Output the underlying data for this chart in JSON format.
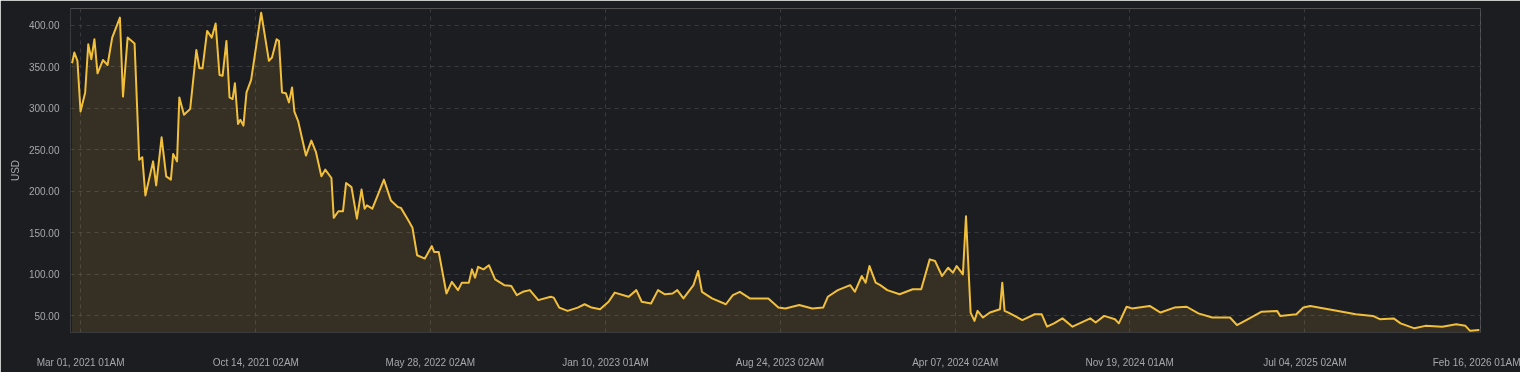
{
  "chart_data": {
    "type": "area",
    "ylabel": "USD",
    "grid": true,
    "marker": "none",
    "line_style": "solid",
    "xlim": [
      "2021-02-16",
      "2026-02-16T12:00"
    ],
    "ylim": [
      30,
      420
    ],
    "yticks": [
      {
        "value": 50,
        "label": "50.00"
      },
      {
        "value": 100,
        "label": "100.00"
      },
      {
        "value": 150,
        "label": "150.00"
      },
      {
        "value": 200,
        "label": "200.00"
      },
      {
        "value": 250,
        "label": "250.00"
      },
      {
        "value": 300,
        "label": "300.00"
      },
      {
        "value": 350,
        "label": "350.00"
      },
      {
        "value": 400,
        "label": "400.00"
      }
    ],
    "xticks": [
      {
        "value": "2021-03-01T01:00",
        "label": "Mar 01, 2021 01AM"
      },
      {
        "value": "2021-10-14T02:00",
        "label": "Oct 14, 2021 02AM"
      },
      {
        "value": "2022-05-28T02:00",
        "label": "May 28, 2022 02AM"
      },
      {
        "value": "2023-01-10T01:00",
        "label": "Jan 10, 2023 01AM"
      },
      {
        "value": "2023-08-24T02:00",
        "label": "Aug 24, 2023 02AM"
      },
      {
        "value": "2024-04-07T02:00",
        "label": "Apr 07, 2024 02AM"
      },
      {
        "value": "2024-11-19T01:00",
        "label": "Nov 19, 2024 01AM"
      },
      {
        "value": "2025-07-04T02:00",
        "label": "Jul 04, 2025 02AM"
      },
      {
        "value": "2026-02-16T01:00",
        "label": "Feb 16, 2026 01AM"
      }
    ],
    "series": [
      {
        "color": "#f2bf3c",
        "x": [
          "2021-02-18",
          "2021-02-21",
          "2021-02-25",
          "2021-03-01",
          "2021-03-07",
          "2021-03-11",
          "2021-03-15",
          "2021-03-19",
          "2021-03-23",
          "2021-03-30",
          "2021-04-05",
          "2021-04-11",
          "2021-04-21",
          "2021-04-25",
          "2021-05-01",
          "2021-05-10",
          "2021-05-16",
          "2021-05-20",
          "2021-05-24",
          "2021-06-03",
          "2021-06-07",
          "2021-06-14",
          "2021-06-20",
          "2021-06-26",
          "2021-06-29",
          "2021-07-04",
          "2021-07-07",
          "2021-07-13",
          "2021-07-21",
          "2021-07-29",
          "2021-08-02",
          "2021-08-06",
          "2021-08-12",
          "2021-08-18",
          "2021-08-23",
          "2021-08-28",
          "2021-09-01",
          "2021-09-06",
          "2021-09-10",
          "2021-09-14",
          "2021-09-17",
          "2021-09-21",
          "2021-09-24",
          "2021-09-28",
          "2021-10-02",
          "2021-10-08",
          "2021-10-21",
          "2021-10-31",
          "2021-11-04",
          "2021-11-10",
          "2021-11-13",
          "2021-11-17",
          "2021-11-22",
          "2021-11-26",
          "2021-11-30",
          "2021-12-03",
          "2021-12-08",
          "2021-12-18",
          "2021-12-25",
          "2021-12-31",
          "2022-01-07",
          "2022-01-12",
          "2022-01-20",
          "2022-01-23",
          "2022-01-29",
          "2022-02-04",
          "2022-02-08",
          "2022-02-15",
          "2022-02-22",
          "2022-02-28",
          "2022-03-04",
          "2022-03-07",
          "2022-03-14",
          "2022-03-20",
          "2022-03-29",
          "2022-04-07",
          "2022-04-16",
          "2022-04-20",
          "2022-04-29",
          "2022-05-05",
          "2022-05-11",
          "2022-05-21",
          "2022-05-30",
          "2022-06-02",
          "2022-06-08",
          "2022-06-18",
          "2022-06-25",
          "2022-07-03",
          "2022-07-08",
          "2022-07-17",
          "2022-07-21",
          "2022-07-25",
          "2022-07-29",
          "2022-08-05",
          "2022-08-12",
          "2022-08-20",
          "2022-09-01",
          "2022-09-10",
          "2022-09-17",
          "2022-09-25",
          "2022-10-04",
          "2022-10-15",
          "2022-10-31",
          "2022-11-04",
          "2022-11-11",
          "2022-11-22",
          "2022-12-05",
          "2022-12-14",
          "2022-12-23",
          "2023-01-03",
          "2023-01-14",
          "2023-01-22",
          "2023-02-09",
          "2023-02-19",
          "2023-02-26",
          "2023-03-10",
          "2023-03-19",
          "2023-03-28",
          "2023-04-07",
          "2023-04-13",
          "2023-04-21",
          "2023-05-04",
          "2023-05-10",
          "2023-05-15",
          "2023-05-28",
          "2023-06-15",
          "2023-06-24",
          "2023-07-03",
          "2023-07-16",
          "2023-08-09",
          "2023-08-22",
          "2023-08-31",
          "2023-09-18",
          "2023-10-05",
          "2023-10-19",
          "2023-10-25",
          "2023-11-07",
          "2023-11-23",
          "2023-11-29",
          "2023-12-08",
          "2023-12-13",
          "2023-12-18",
          "2023-12-26",
          "2024-01-01",
          "2024-01-10",
          "2024-01-26",
          "2024-02-12",
          "2024-02-23",
          "2024-03-05",
          "2024-03-12",
          "2024-03-21",
          "2024-03-29",
          "2024-04-04",
          "2024-04-09",
          "2024-04-17",
          "2024-04-21",
          "2024-04-27",
          "2024-05-02",
          "2024-05-06",
          "2024-05-13",
          "2024-05-22",
          "2024-06-04",
          "2024-06-07",
          "2024-06-10",
          "2024-06-15",
          "2024-07-03",
          "2024-07-19",
          "2024-07-28",
          "2024-08-04",
          "2024-08-13",
          "2024-08-24",
          "2024-09-06",
          "2024-09-29",
          "2024-10-06",
          "2024-10-17",
          "2024-10-31",
          "2024-11-05",
          "2024-11-15",
          "2024-11-22",
          "2024-12-15",
          "2024-12-29",
          "2025-01-16",
          "2025-02-01",
          "2025-02-16",
          "2025-03-06",
          "2025-03-29",
          "2025-04-07",
          "2025-04-25",
          "2025-05-09",
          "2025-05-29",
          "2025-06-02",
          "2025-06-23",
          "2025-07-02",
          "2025-07-11",
          "2025-07-29",
          "2025-08-16",
          "2025-09-08",
          "2025-09-30",
          "2025-10-09",
          "2025-10-27",
          "2025-11-05",
          "2025-11-23",
          "2025-12-07",
          "2025-12-29",
          "2026-01-16",
          "2026-01-28",
          "2026-02-03",
          "2026-02-15"
        ],
        "values": [
          354,
          367,
          357,
          296,
          319,
          377,
          359,
          383,
          342,
          358,
          352,
          385,
          409,
          314,
          385,
          378,
          238,
          241,
          195,
          236,
          207,
          265,
          218,
          214,
          245,
          236,
          313,
          292,
          299,
          370,
          348,
          348,
          393,
          385,
          402,
          340,
          339,
          381,
          313,
          311,
          330,
          281,
          286,
          279,
          319,
          334,
          415,
          357,
          361,
          383,
          381,
          319,
          318,
          307,
          325,
          296,
          284,
          243,
          261,
          247,
          218,
          226,
          216,
          168,
          176,
          176,
          210,
          205,
          167,
          202,
          179,
          183,
          179,
          193,
          214,
          189,
          181,
          180,
          166,
          156,
          123,
          119,
          134,
          127,
          127,
          77,
          91,
          81,
          90,
          90,
          106,
          96,
          109,
          106,
          111,
          94,
          87,
          86,
          75,
          79,
          81,
          69,
          73,
          72,
          60,
          56,
          60,
          64,
          60,
          58,
          67,
          78,
          73,
          81,
          67,
          65,
          81,
          76,
          77,
          81,
          71,
          87,
          104,
          79,
          71,
          64,
          75,
          79,
          71,
          71,
          60,
          59,
          63,
          59,
          60,
          73,
          81,
          87,
          79,
          98,
          90,
          110,
          90,
          87,
          81,
          76,
          82,
          82,
          118,
          116,
          98,
          108,
          102,
          110,
          100,
          170,
          54,
          44,
          56,
          48,
          54,
          58,
          90,
          56,
          54,
          45,
          52,
          52,
          37,
          41,
          47,
          37,
          47,
          42,
          50,
          46,
          41,
          61,
          59,
          62,
          54,
          60,
          61,
          53,
          48,
          48,
          39,
          48,
          55,
          56,
          50,
          52,
          60,
          62,
          59,
          56,
          52,
          50,
          46,
          47,
          41,
          35,
          38,
          37,
          40,
          38,
          32,
          33
        ]
      }
    ]
  }
}
